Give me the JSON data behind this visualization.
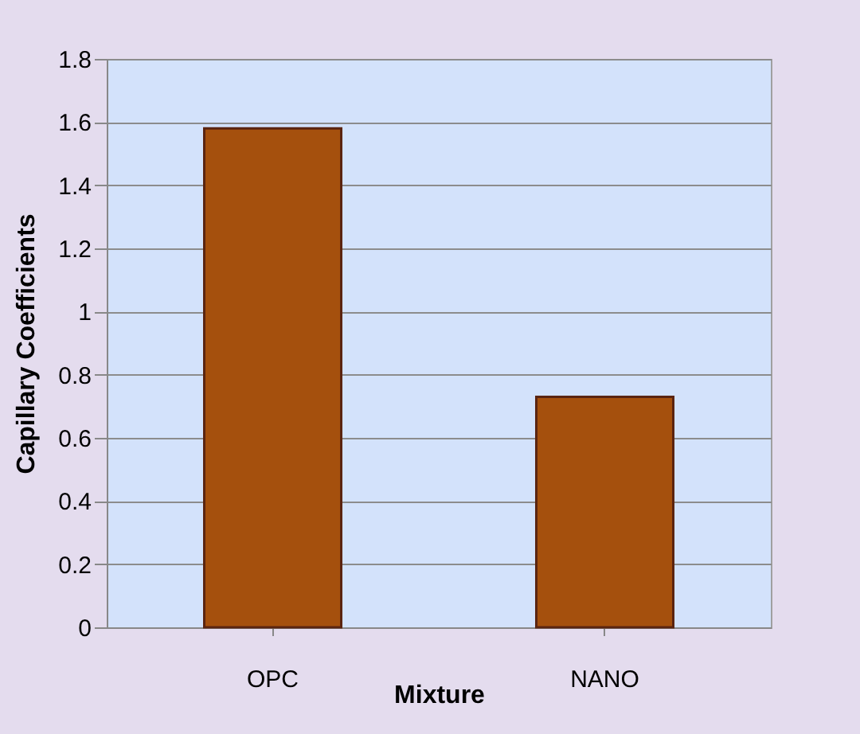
{
  "chart_data": {
    "type": "bar",
    "xlabel": "Mixture",
    "ylabel": "Capillary Coefficients",
    "categories": [
      "OPC",
      "NANO"
    ],
    "values": [
      1.58,
      0.73
    ],
    "color": "#a5500d",
    "ylim": [
      0,
      1.8
    ],
    "yticks": [
      0,
      0.2,
      0.4,
      0.6,
      0.8,
      1,
      1.2,
      1.4,
      1.6,
      1.8
    ],
    "grid": "y"
  }
}
